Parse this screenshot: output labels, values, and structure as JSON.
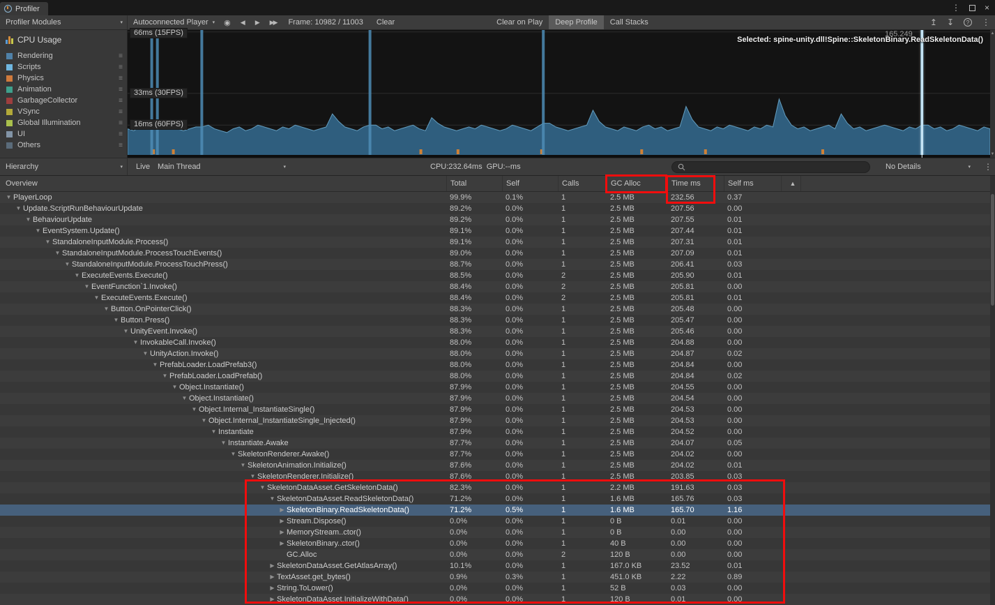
{
  "window": {
    "tab_title": "Profiler"
  },
  "toolbar": {
    "modules_label": "Profiler Modules",
    "target_label": "Autoconnected Player",
    "frame_label": "Frame: 10982 / 11003",
    "clear_label": "Clear",
    "clear_on_play_label": "Clear on Play",
    "deep_profile_label": "Deep Profile",
    "call_stacks_label": "Call Stacks"
  },
  "cpu_module": {
    "title": "CPU Usage",
    "legend": [
      {
        "label": "Rendering",
        "color": "#4f81a8"
      },
      {
        "label": "Scripts",
        "color": "#6fb6df"
      },
      {
        "label": "Physics",
        "color": "#cf7a3c"
      },
      {
        "label": "Animation",
        "color": "#3fa08c"
      },
      {
        "label": "GarbageCollector",
        "color": "#9d3e3e"
      },
      {
        "label": "VSync",
        "color": "#b2a939"
      },
      {
        "label": "Global Illumination",
        "color": "#a9c04c"
      },
      {
        "label": "UI",
        "color": "#8294a6"
      },
      {
        "label": "Others",
        "color": "#5a6b7a"
      }
    ]
  },
  "chart": {
    "unit_labels": [
      {
        "text": "66ms (15FPS)",
        "ms": 66
      },
      {
        "text": "33ms (30FPS)",
        "ms": 33
      },
      {
        "text": "16ms (60FPS)",
        "ms": 16
      }
    ],
    "selected_info": "Selected: spine-unity.dll!Spine::SkeletonBinary.ReadSkeletonData()",
    "hover_value": "165.249",
    "max_ms": 67,
    "series_color": "#2f5e7e",
    "series_line_color": "#6aa7cb",
    "spike_color": "#4d8cb5",
    "selected_spike_color": "#aad7ee",
    "gc_mark_color": "#cf8136",
    "samples_ms": [
      14,
      13,
      15,
      16,
      17,
      16,
      18,
      15,
      14,
      13,
      14,
      15,
      15,
      16,
      14,
      13,
      12,
      14,
      15,
      13,
      14,
      16,
      15,
      14,
      13,
      15,
      14,
      16,
      15,
      14,
      13,
      14,
      15,
      22,
      18,
      15,
      14,
      13,
      15,
      16,
      16,
      14,
      15,
      13,
      14,
      15,
      16,
      14,
      13,
      20,
      17,
      15,
      14,
      13,
      14,
      15,
      14,
      16,
      15,
      14,
      13,
      14,
      16,
      15,
      14,
      13,
      15,
      17,
      17,
      15,
      14,
      13,
      14,
      15,
      16,
      24,
      18,
      15,
      14,
      13,
      15,
      14,
      13,
      15,
      16,
      14,
      15,
      13,
      14,
      15,
      26,
      19,
      15,
      14,
      13,
      15,
      14,
      16,
      15,
      14,
      13,
      15,
      14,
      16,
      15,
      30,
      21,
      16,
      14,
      15,
      13,
      14,
      15,
      16,
      14,
      22,
      17,
      14,
      15,
      13,
      14,
      15,
      16,
      15,
      14,
      13,
      15,
      14,
      16,
      16,
      14,
      15,
      13,
      14,
      16,
      15,
      14,
      13,
      15,
      14
    ],
    "spikes": [
      0.028,
      0.0345,
      0.086,
      0.281,
      0.482
    ],
    "selected_frame": 0.921,
    "gc_marks": [
      0.03,
      0.053,
      0.34,
      0.383,
      0.48,
      0.596,
      0.67,
      0.806
    ]
  },
  "hierarchy_toolbar": {
    "view_label": "Hierarchy",
    "live_label": "Live",
    "thread_label": "Main Thread",
    "cpu_gpu_label": "CPU:232.64ms  GPU:--ms",
    "details_label": "No Details"
  },
  "table": {
    "columns": [
      "Overview",
      "Total",
      "Self",
      "Calls",
      "GC Alloc",
      "Time ms",
      "Self ms"
    ],
    "rows": [
      {
        "name": "PlayerLoop",
        "depth": 0,
        "arrow": "expanded",
        "total": "99.9%",
        "self": "0.1%",
        "calls": "1",
        "gc_alloc": "2.5 MB",
        "time_ms": "232.56",
        "self_ms": "0.37"
      },
      {
        "name": "Update.ScriptRunBehaviourUpdate",
        "depth": 1,
        "arrow": "expanded",
        "total": "89.2%",
        "self": "0.0%",
        "calls": "1",
        "gc_alloc": "2.5 MB",
        "time_ms": "207.56",
        "self_ms": "0.00"
      },
      {
        "name": "BehaviourUpdate",
        "depth": 2,
        "arrow": "expanded",
        "total": "89.2%",
        "self": "0.0%",
        "calls": "1",
        "gc_alloc": "2.5 MB",
        "time_ms": "207.55",
        "self_ms": "0.01"
      },
      {
        "name": "EventSystem.Update()",
        "depth": 3,
        "arrow": "expanded",
        "total": "89.1%",
        "self": "0.0%",
        "calls": "1",
        "gc_alloc": "2.5 MB",
        "time_ms": "207.44",
        "self_ms": "0.01"
      },
      {
        "name": "StandaloneInputModule.Process()",
        "depth": 4,
        "arrow": "expanded",
        "total": "89.1%",
        "self": "0.0%",
        "calls": "1",
        "gc_alloc": "2.5 MB",
        "time_ms": "207.31",
        "self_ms": "0.01"
      },
      {
        "name": "StandaloneInputModule.ProcessTouchEvents()",
        "depth": 5,
        "arrow": "expanded",
        "total": "89.0%",
        "self": "0.0%",
        "calls": "1",
        "gc_alloc": "2.5 MB",
        "time_ms": "207.09",
        "self_ms": "0.01"
      },
      {
        "name": "StandaloneInputModule.ProcessTouchPress()",
        "depth": 6,
        "arrow": "expanded",
        "total": "88.7%",
        "self": "0.0%",
        "calls": "1",
        "gc_alloc": "2.5 MB",
        "time_ms": "206.41",
        "self_ms": "0.03"
      },
      {
        "name": "ExecuteEvents.Execute()",
        "depth": 7,
        "arrow": "expanded",
        "total": "88.5%",
        "self": "0.0%",
        "calls": "2",
        "gc_alloc": "2.5 MB",
        "time_ms": "205.90",
        "self_ms": "0.01"
      },
      {
        "name": "EventFunction`1.Invoke()",
        "depth": 8,
        "arrow": "expanded",
        "total": "88.4%",
        "self": "0.0%",
        "calls": "2",
        "gc_alloc": "2.5 MB",
        "time_ms": "205.81",
        "self_ms": "0.00"
      },
      {
        "name": "ExecuteEvents.Execute()",
        "depth": 9,
        "arrow": "expanded",
        "total": "88.4%",
        "self": "0.0%",
        "calls": "2",
        "gc_alloc": "2.5 MB",
        "time_ms": "205.81",
        "self_ms": "0.01"
      },
      {
        "name": "Button.OnPointerClick()",
        "depth": 10,
        "arrow": "expanded",
        "total": "88.3%",
        "self": "0.0%",
        "calls": "1",
        "gc_alloc": "2.5 MB",
        "time_ms": "205.48",
        "self_ms": "0.00"
      },
      {
        "name": "Button.Press()",
        "depth": 11,
        "arrow": "expanded",
        "total": "88.3%",
        "self": "0.0%",
        "calls": "1",
        "gc_alloc": "2.5 MB",
        "time_ms": "205.47",
        "self_ms": "0.00"
      },
      {
        "name": "UnityEvent.Invoke()",
        "depth": 12,
        "arrow": "expanded",
        "total": "88.3%",
        "self": "0.0%",
        "calls": "1",
        "gc_alloc": "2.5 MB",
        "time_ms": "205.46",
        "self_ms": "0.00"
      },
      {
        "name": "InvokableCall.Invoke()",
        "depth": 13,
        "arrow": "expanded",
        "total": "88.0%",
        "self": "0.0%",
        "calls": "1",
        "gc_alloc": "2.5 MB",
        "time_ms": "204.88",
        "self_ms": "0.00"
      },
      {
        "name": "UnityAction.Invoke()",
        "depth": 14,
        "arrow": "expanded",
        "total": "88.0%",
        "self": "0.0%",
        "calls": "1",
        "gc_alloc": "2.5 MB",
        "time_ms": "204.87",
        "self_ms": "0.02"
      },
      {
        "name": "PrefabLoader.LoadPrefab3()",
        "depth": 15,
        "arrow": "expanded",
        "total": "88.0%",
        "self": "0.0%",
        "calls": "1",
        "gc_alloc": "2.5 MB",
        "time_ms": "204.84",
        "self_ms": "0.00"
      },
      {
        "name": "PrefabLoader.LoadPrefab()",
        "depth": 16,
        "arrow": "expanded",
        "total": "88.0%",
        "self": "0.0%",
        "calls": "1",
        "gc_alloc": "2.5 MB",
        "time_ms": "204.84",
        "self_ms": "0.02"
      },
      {
        "name": "Object.Instantiate()",
        "depth": 17,
        "arrow": "expanded",
        "total": "87.9%",
        "self": "0.0%",
        "calls": "1",
        "gc_alloc": "2.5 MB",
        "time_ms": "204.55",
        "self_ms": "0.00"
      },
      {
        "name": "Object.Instantiate()",
        "depth": 18,
        "arrow": "expanded",
        "total": "87.9%",
        "self": "0.0%",
        "calls": "1",
        "gc_alloc": "2.5 MB",
        "time_ms": "204.54",
        "self_ms": "0.00"
      },
      {
        "name": "Object.Internal_InstantiateSingle()",
        "depth": 19,
        "arrow": "expanded",
        "total": "87.9%",
        "self": "0.0%",
        "calls": "1",
        "gc_alloc": "2.5 MB",
        "time_ms": "204.53",
        "self_ms": "0.00"
      },
      {
        "name": "Object.Internal_InstantiateSingle_Injected()",
        "depth": 20,
        "arrow": "expanded",
        "total": "87.9%",
        "self": "0.0%",
        "calls": "1",
        "gc_alloc": "2.5 MB",
        "time_ms": "204.53",
        "self_ms": "0.00"
      },
      {
        "name": "Instantiate",
        "depth": 21,
        "arrow": "expanded",
        "total": "87.9%",
        "self": "0.0%",
        "calls": "1",
        "gc_alloc": "2.5 MB",
        "time_ms": "204.52",
        "self_ms": "0.00"
      },
      {
        "name": "Instantiate.Awake",
        "depth": 22,
        "arrow": "expanded",
        "total": "87.7%",
        "self": "0.0%",
        "calls": "1",
        "gc_alloc": "2.5 MB",
        "time_ms": "204.07",
        "self_ms": "0.05"
      },
      {
        "name": "SkeletonRenderer.Awake()",
        "depth": 23,
        "arrow": "expanded",
        "total": "87.7%",
        "self": "0.0%",
        "calls": "1",
        "gc_alloc": "2.5 MB",
        "time_ms": "204.02",
        "self_ms": "0.00"
      },
      {
        "name": "SkeletonAnimation.Initialize()",
        "depth": 24,
        "arrow": "expanded",
        "total": "87.6%",
        "self": "0.0%",
        "calls": "1",
        "gc_alloc": "2.5 MB",
        "time_ms": "204.02",
        "self_ms": "0.01"
      },
      {
        "name": "SkeletonRenderer.Initialize()",
        "depth": 25,
        "arrow": "expanded",
        "total": "87.6%",
        "self": "0.0%",
        "calls": "1",
        "gc_alloc": "2.5 MB",
        "time_ms": "203.85",
        "self_ms": "0.03"
      },
      {
        "name": "SkeletonDataAsset.GetSkeletonData()",
        "depth": 26,
        "arrow": "expanded",
        "total": "82.3%",
        "self": "0.0%",
        "calls": "1",
        "gc_alloc": "2.2 MB",
        "time_ms": "191.63",
        "self_ms": "0.03"
      },
      {
        "name": "SkeletonDataAsset.ReadSkeletonData()",
        "depth": 27,
        "arrow": "expanded",
        "total": "71.2%",
        "self": "0.0%",
        "calls": "1",
        "gc_alloc": "1.6 MB",
        "time_ms": "165.76",
        "self_ms": "0.03"
      },
      {
        "name": "SkeletonBinary.ReadSkeletonData()",
        "depth": 28,
        "arrow": "collapsed",
        "total": "71.2%",
        "self": "0.5%",
        "calls": "1",
        "gc_alloc": "1.6 MB",
        "time_ms": "165.70",
        "self_ms": "1.16",
        "selected": true
      },
      {
        "name": "Stream.Dispose()",
        "depth": 28,
        "arrow": "collapsed",
        "total": "0.0%",
        "self": "0.0%",
        "calls": "1",
        "gc_alloc": "0 B",
        "time_ms": "0.01",
        "self_ms": "0.00"
      },
      {
        "name": "MemoryStream..ctor()",
        "depth": 28,
        "arrow": "collapsed",
        "total": "0.0%",
        "self": "0.0%",
        "calls": "1",
        "gc_alloc": "0 B",
        "time_ms": "0.00",
        "self_ms": "0.00"
      },
      {
        "name": "SkeletonBinary..ctor()",
        "depth": 28,
        "arrow": "collapsed",
        "total": "0.0%",
        "self": "0.0%",
        "calls": "1",
        "gc_alloc": "40 B",
        "time_ms": "0.00",
        "self_ms": "0.00"
      },
      {
        "name": "GC.Alloc",
        "depth": 28,
        "arrow": "leaf",
        "total": "0.0%",
        "self": "0.0%",
        "calls": "2",
        "gc_alloc": "120 B",
        "time_ms": "0.00",
        "self_ms": "0.00"
      },
      {
        "name": "SkeletonDataAsset.GetAtlasArray()",
        "depth": 27,
        "arrow": "collapsed",
        "total": "10.1%",
        "self": "0.0%",
        "calls": "1",
        "gc_alloc": "167.0 KB",
        "time_ms": "23.52",
        "self_ms": "0.01"
      },
      {
        "name": "TextAsset.get_bytes()",
        "depth": 27,
        "arrow": "collapsed",
        "total": "0.9%",
        "self": "0.3%",
        "calls": "1",
        "gc_alloc": "451.0 KB",
        "time_ms": "2.22",
        "self_ms": "0.89"
      },
      {
        "name": "String.ToLower()",
        "depth": 27,
        "arrow": "collapsed",
        "total": "0.0%",
        "self": "0.0%",
        "calls": "1",
        "gc_alloc": "52 B",
        "time_ms": "0.03",
        "self_ms": "0.00"
      },
      {
        "name": "SkeletonDataAsset.InitializeWithData()",
        "depth": 27,
        "arrow": "collapsed",
        "total": "0.0%",
        "self": "0.0%",
        "calls": "1",
        "gc_alloc": "120 B",
        "time_ms": "0.01",
        "self_ms": "0.00"
      }
    ]
  }
}
